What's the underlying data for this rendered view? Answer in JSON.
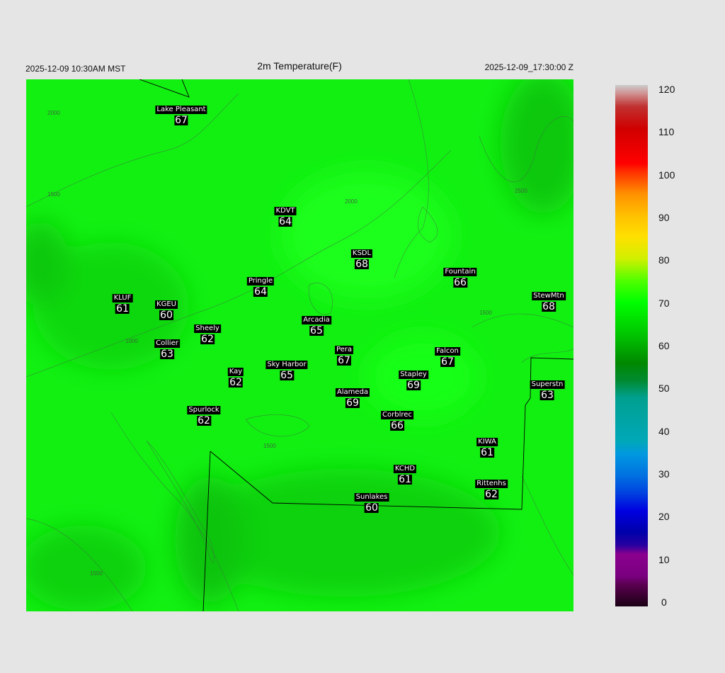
{
  "header": {
    "title": "2m Temperature(F)",
    "local_time": "2025-12-09 10:30AM MST",
    "utc_time": "2025-12-09_17:30:00 Z"
  },
  "stations": [
    {
      "name": "Lake Pleasant",
      "value": "67"
    },
    {
      "name": "KDVT",
      "value": "64"
    },
    {
      "name": "KSDL",
      "value": "68"
    },
    {
      "name": "Fountain",
      "value": "66"
    },
    {
      "name": "StewMtn",
      "value": "68"
    },
    {
      "name": "KLUF",
      "value": "61"
    },
    {
      "name": "KGEU",
      "value": "60"
    },
    {
      "name": "Pringle",
      "value": "64"
    },
    {
      "name": "Arcadia",
      "value": "65"
    },
    {
      "name": "Sheely",
      "value": "62"
    },
    {
      "name": "Collier",
      "value": "63"
    },
    {
      "name": "Pera",
      "value": "67"
    },
    {
      "name": "Falcon",
      "value": "67"
    },
    {
      "name": "Kay",
      "value": "62"
    },
    {
      "name": "Sky Harbor",
      "value": "65"
    },
    {
      "name": "Stapley",
      "value": "69"
    },
    {
      "name": "Superstn",
      "value": "63"
    },
    {
      "name": "Alameda",
      "value": "69"
    },
    {
      "name": "Spurlock",
      "value": "62"
    },
    {
      "name": "Corblrec",
      "value": "66"
    },
    {
      "name": "KIWA",
      "value": "61"
    },
    {
      "name": "KCHD",
      "value": "61"
    },
    {
      "name": "Rittenhs",
      "value": "62"
    },
    {
      "name": "Sunlakes",
      "value": "60"
    }
  ],
  "contour_labels": [
    "2000",
    "1500",
    "1000",
    "2500"
  ],
  "colorbar": {
    "min": 0,
    "max": 120,
    "ticks": [
      "0",
      "10",
      "20",
      "30",
      "40",
      "50",
      "60",
      "70",
      "80",
      "90",
      "100",
      "110",
      "120"
    ],
    "stops": [
      {
        "v": 0,
        "c": "#1a0014"
      },
      {
        "v": 5,
        "c": "#5a0050"
      },
      {
        "v": 7,
        "c": "#7a0080"
      },
      {
        "v": 12,
        "c": "#8a008e"
      },
      {
        "v": 14,
        "c": "#2a00a0"
      },
      {
        "v": 17,
        "c": "#0000aa"
      },
      {
        "v": 22,
        "c": "#0000e0"
      },
      {
        "v": 26,
        "c": "#0040e0"
      },
      {
        "v": 30,
        "c": "#0070e0"
      },
      {
        "v": 35,
        "c": "#0098e0"
      },
      {
        "v": 38,
        "c": "#00a8b8"
      },
      {
        "v": 48,
        "c": "#00a090"
      },
      {
        "v": 52,
        "c": "#008a30"
      },
      {
        "v": 56,
        "c": "#008800"
      },
      {
        "v": 62,
        "c": "#00c000"
      },
      {
        "v": 70,
        "c": "#00ff00"
      },
      {
        "v": 75,
        "c": "#50ff00"
      },
      {
        "v": 80,
        "c": "#d0f000"
      },
      {
        "v": 85,
        "c": "#ffe000"
      },
      {
        "v": 90,
        "c": "#ffc000"
      },
      {
        "v": 95,
        "c": "#ff9000"
      },
      {
        "v": 100,
        "c": "#ff3000"
      },
      {
        "v": 102,
        "c": "#ff0000"
      },
      {
        "v": 110,
        "c": "#d00000"
      },
      {
        "v": 115,
        "c": "#c03030"
      },
      {
        "v": 118,
        "c": "#d09090"
      },
      {
        "v": 120,
        "c": "#cccccc"
      }
    ]
  }
}
